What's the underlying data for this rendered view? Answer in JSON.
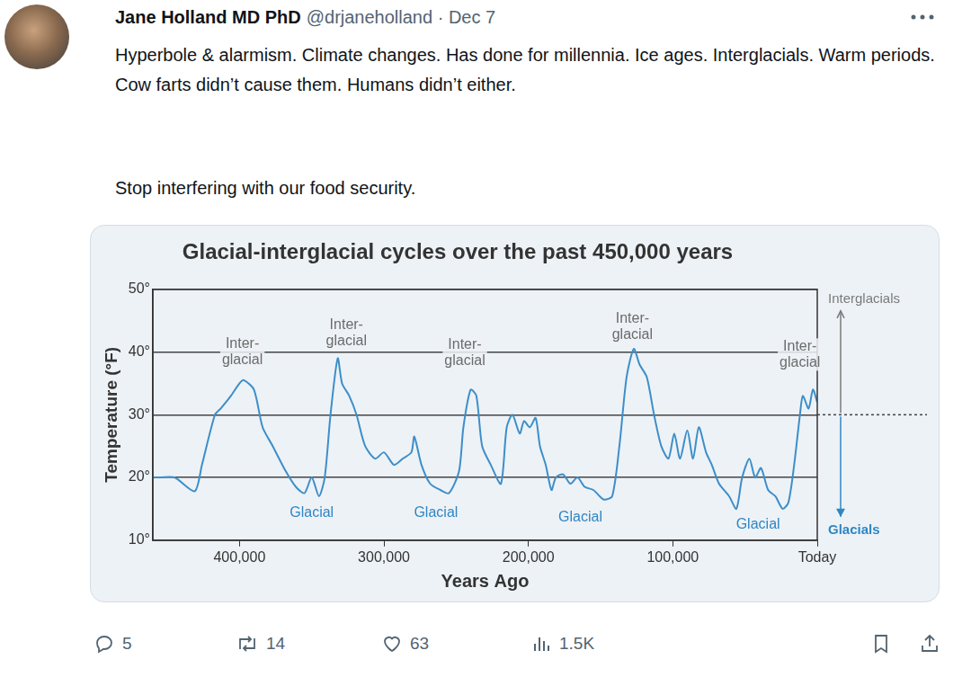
{
  "post": {
    "author": "Jane Holland MD PhD",
    "meta": "@drjaneholland · Dec 7",
    "text": [
      "Hyperbole & alarmism. Climate changes. Has done for millennia. Ice ages. Interglacials. Warm periods. Cow farts didn’t cause them. Humans didn’t either.",
      "Stop interfering with our food security."
    ],
    "stats": {
      "replies": "5",
      "reposts": "14",
      "likes": "63",
      "views": "1.5K"
    }
  },
  "chart_data": {
    "type": "line",
    "title": "Glacial-interglacial cycles over the past 450,000 years",
    "x_label": "Years Ago",
    "y_label": "Temperature (°F)",
    "color": "#3d8ec9",
    "grid": true,
    "xlim": [
      460000,
      0
    ],
    "xticks": [
      {
        "value": 400000,
        "label": "400,000"
      },
      {
        "value": 300000,
        "label": "300,000"
      },
      {
        "value": 200000,
        "label": "200,000"
      },
      {
        "value": 100000,
        "label": "100,000"
      },
      {
        "value": 0,
        "label": "Today"
      }
    ],
    "ylim": [
      10,
      50
    ],
    "yticks": [
      {
        "value": 10,
        "label": "10°"
      },
      {
        "value": 20,
        "label": "20°"
      },
      {
        "value": 30,
        "label": "30°"
      },
      {
        "value": 40,
        "label": "40°"
      },
      {
        "value": 50,
        "label": "50°"
      }
    ],
    "x": [
      460000,
      455000,
      445000,
      431000,
      426000,
      417000,
      413000,
      406000,
      400000,
      397000,
      390000,
      384000,
      377000,
      368000,
      361000,
      355000,
      350000,
      345000,
      341000,
      337000,
      332000,
      329000,
      324000,
      319000,
      313000,
      306000,
      300000,
      293000,
      287000,
      281000,
      279000,
      274000,
      268000,
      261000,
      255000,
      248000,
      245000,
      240000,
      236000,
      232000,
      226000,
      219000,
      215000,
      211000,
      206000,
      203000,
      199000,
      195000,
      192000,
      188000,
      184000,
      181000,
      176000,
      171000,
      166000,
      161000,
      155000,
      148000,
      142000,
      137000,
      132000,
      127000,
      123000,
      118000,
      113000,
      108000,
      103000,
      99000,
      95000,
      90000,
      86000,
      82000,
      77000,
      73000,
      68000,
      61000,
      56000,
      52000,
      47000,
      43000,
      39000,
      34000,
      29000,
      24000,
      20000,
      16000,
      12000,
      10000,
      6000,
      3000,
      0
    ],
    "values": [
      20,
      20,
      20,
      17.8,
      22,
      30,
      31,
      33,
      35,
      35.5,
      34,
      28,
      25,
      21,
      18.5,
      17.5,
      20,
      17,
      20,
      30,
      39,
      35,
      33,
      30,
      25,
      23,
      24,
      22,
      23,
      24,
      26.5,
      22,
      19,
      18,
      17.5,
      21,
      28,
      34,
      33,
      25,
      22,
      19,
      28,
      30,
      27,
      29,
      28,
      29.5,
      25,
      22,
      18,
      20,
      20.5,
      19,
      20,
      18.5,
      18,
      16.5,
      17,
      25,
      36,
      40.5,
      38,
      36,
      30,
      25,
      23,
      27,
      23,
      27.5,
      23,
      28,
      24,
      22,
      19,
      17,
      15,
      20,
      23,
      20,
      21.5,
      18,
      17,
      15,
      16,
      22,
      30,
      33,
      31,
      34,
      32
    ],
    "annotations": [
      {
        "text": [
          "Inter-",
          "glacial"
        ],
        "x": 398000,
        "y": 40,
        "color": "#6b6b6b"
      },
      {
        "text": [
          "Inter-",
          "glacial"
        ],
        "x": 326000,
        "y": 43,
        "color": "#6b6b6b"
      },
      {
        "text": [
          "Inter-",
          "glacial"
        ],
        "x": 244000,
        "y": 39.8,
        "color": "#6b6b6b"
      },
      {
        "text": [
          "Inter-",
          "glacial"
        ],
        "x": 128000,
        "y": 44,
        "color": "#6b6b6b"
      },
      {
        "text": [
          "Inter-",
          "glacial"
        ],
        "x": 12000,
        "y": 39.6,
        "color": "#6b6b6b"
      },
      {
        "text": [
          "Glacial"
        ],
        "x": 350000,
        "y": 14.3,
        "color": "#2f86c4"
      },
      {
        "text": [
          "Glacial"
        ],
        "x": 264000,
        "y": 14.3,
        "color": "#2f86c4"
      },
      {
        "text": [
          "Glacial"
        ],
        "x": 164000,
        "y": 13.6,
        "color": "#2f86c4"
      },
      {
        "text": [
          "Glacial"
        ],
        "x": 41000,
        "y": 12.4,
        "color": "#2f86c4"
      }
    ],
    "divider": 30,
    "right_labels": [
      {
        "text": "Interglacials",
        "color": "#7a7a7a"
      },
      {
        "text": "Glacials",
        "color": "#2f86c4"
      }
    ]
  }
}
